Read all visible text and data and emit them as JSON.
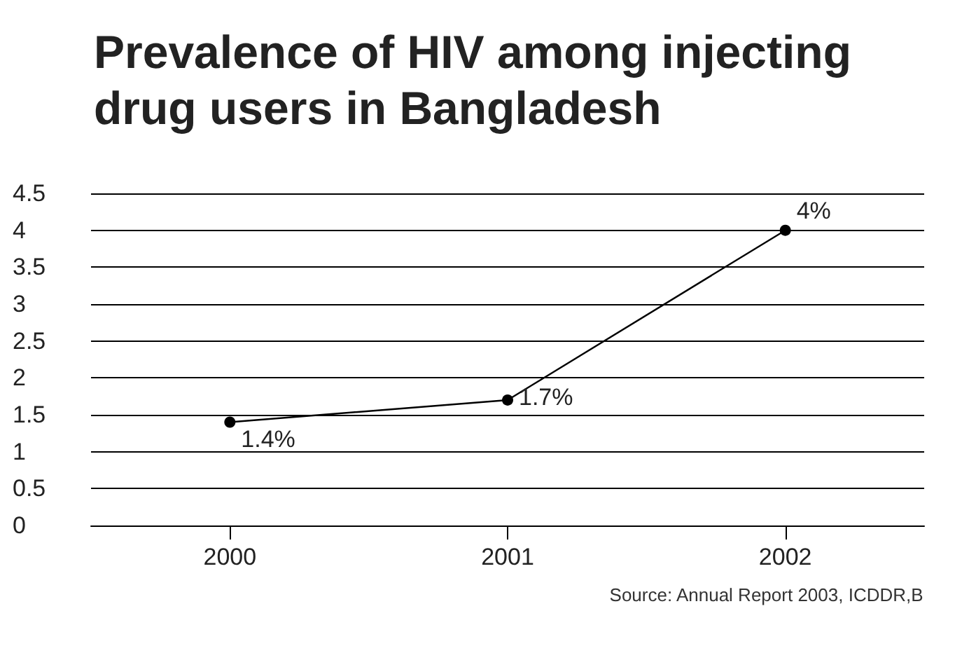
{
  "chart_data": {
    "type": "line",
    "title": "Prevalence of HIV among injecting drug users in Bangladesh",
    "categories": [
      "2000",
      "2001",
      "2002"
    ],
    "series": [
      {
        "color": "#000000",
        "values": [
          1.4,
          1.7,
          4
        ],
        "value_labels": [
          "1.4%",
          "1.7%",
          "4%"
        ]
      }
    ],
    "ylim": [
      0,
      4.5
    ],
    "yticks": [
      0,
      0.5,
      1,
      1.5,
      2,
      2.5,
      3,
      3.5,
      4,
      4.5
    ],
    "grid": "y",
    "marker": "circle",
    "line_style": "solid",
    "annotations": [
      "Source: Annual Report 2003, ICDDR,B"
    ]
  }
}
